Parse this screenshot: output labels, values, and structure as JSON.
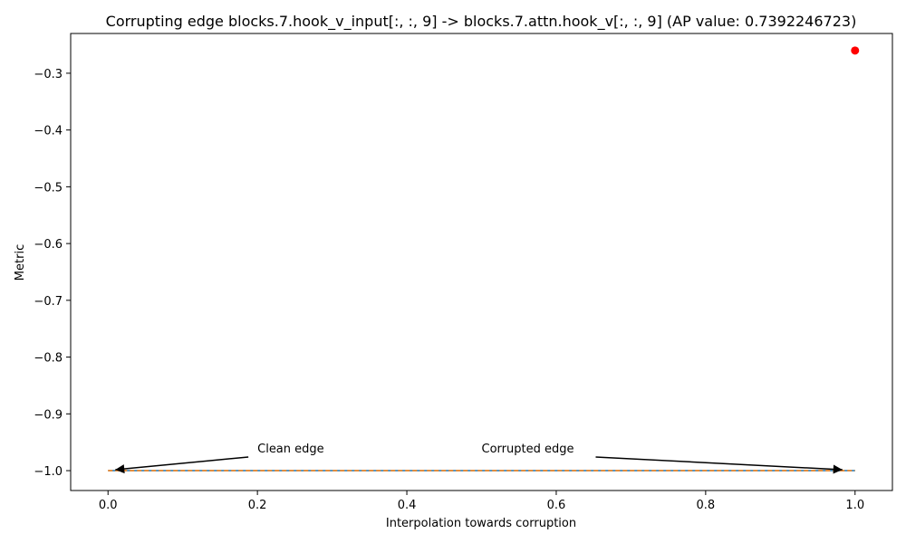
{
  "chart_data": {
    "type": "line",
    "title": "Corrupting edge blocks.7.hook_v_input[:, :, 9] -> blocks.7.attn.hook_v[:, :, 9] (AP value: 0.7392246723)",
    "xlabel": "Interpolation towards corruption",
    "ylabel": "Metric",
    "xlim": [
      -0.05,
      1.05
    ],
    "ylim": [
      -1.035,
      -0.23
    ],
    "x_ticks": [
      0.0,
      0.2,
      0.4,
      0.6,
      0.8,
      1.0
    ],
    "x_tick_labels": [
      "0.0",
      "0.2",
      "0.4",
      "0.6",
      "0.8",
      "1.0"
    ],
    "y_ticks": [
      -0.3,
      -0.4,
      -0.5,
      -0.6,
      -0.7,
      -0.8,
      -0.9,
      -1.0
    ],
    "y_tick_labels": [
      "−0.3",
      "−0.4",
      "−0.5",
      "−0.6",
      "−0.7",
      "−0.8",
      "−0.9",
      "−1.0"
    ],
    "grid": false,
    "series": [
      {
        "style": "solid",
        "color": "#1f77b4",
        "x": [
          0.0,
          1.0
        ],
        "y": [
          -1.0,
          -1.0
        ]
      },
      {
        "style": "dashed",
        "color": "#ff7f0e",
        "x": [
          0.0,
          1.0
        ],
        "y": [
          -1.0,
          -1.0
        ]
      },
      {
        "style": "marker",
        "color": "#ff0000",
        "x": [
          1.0
        ],
        "y": [
          -0.26
        ]
      }
    ],
    "annotations": [
      {
        "text": "Clean edge",
        "text_x": 0.2,
        "text_y": -0.96,
        "point_x": 0.0,
        "point_y": -1.0
      },
      {
        "text": "Corrupted edge",
        "text_x": 0.5,
        "text_y": -0.96,
        "point_x": 1.0,
        "point_y": -1.0
      }
    ]
  }
}
